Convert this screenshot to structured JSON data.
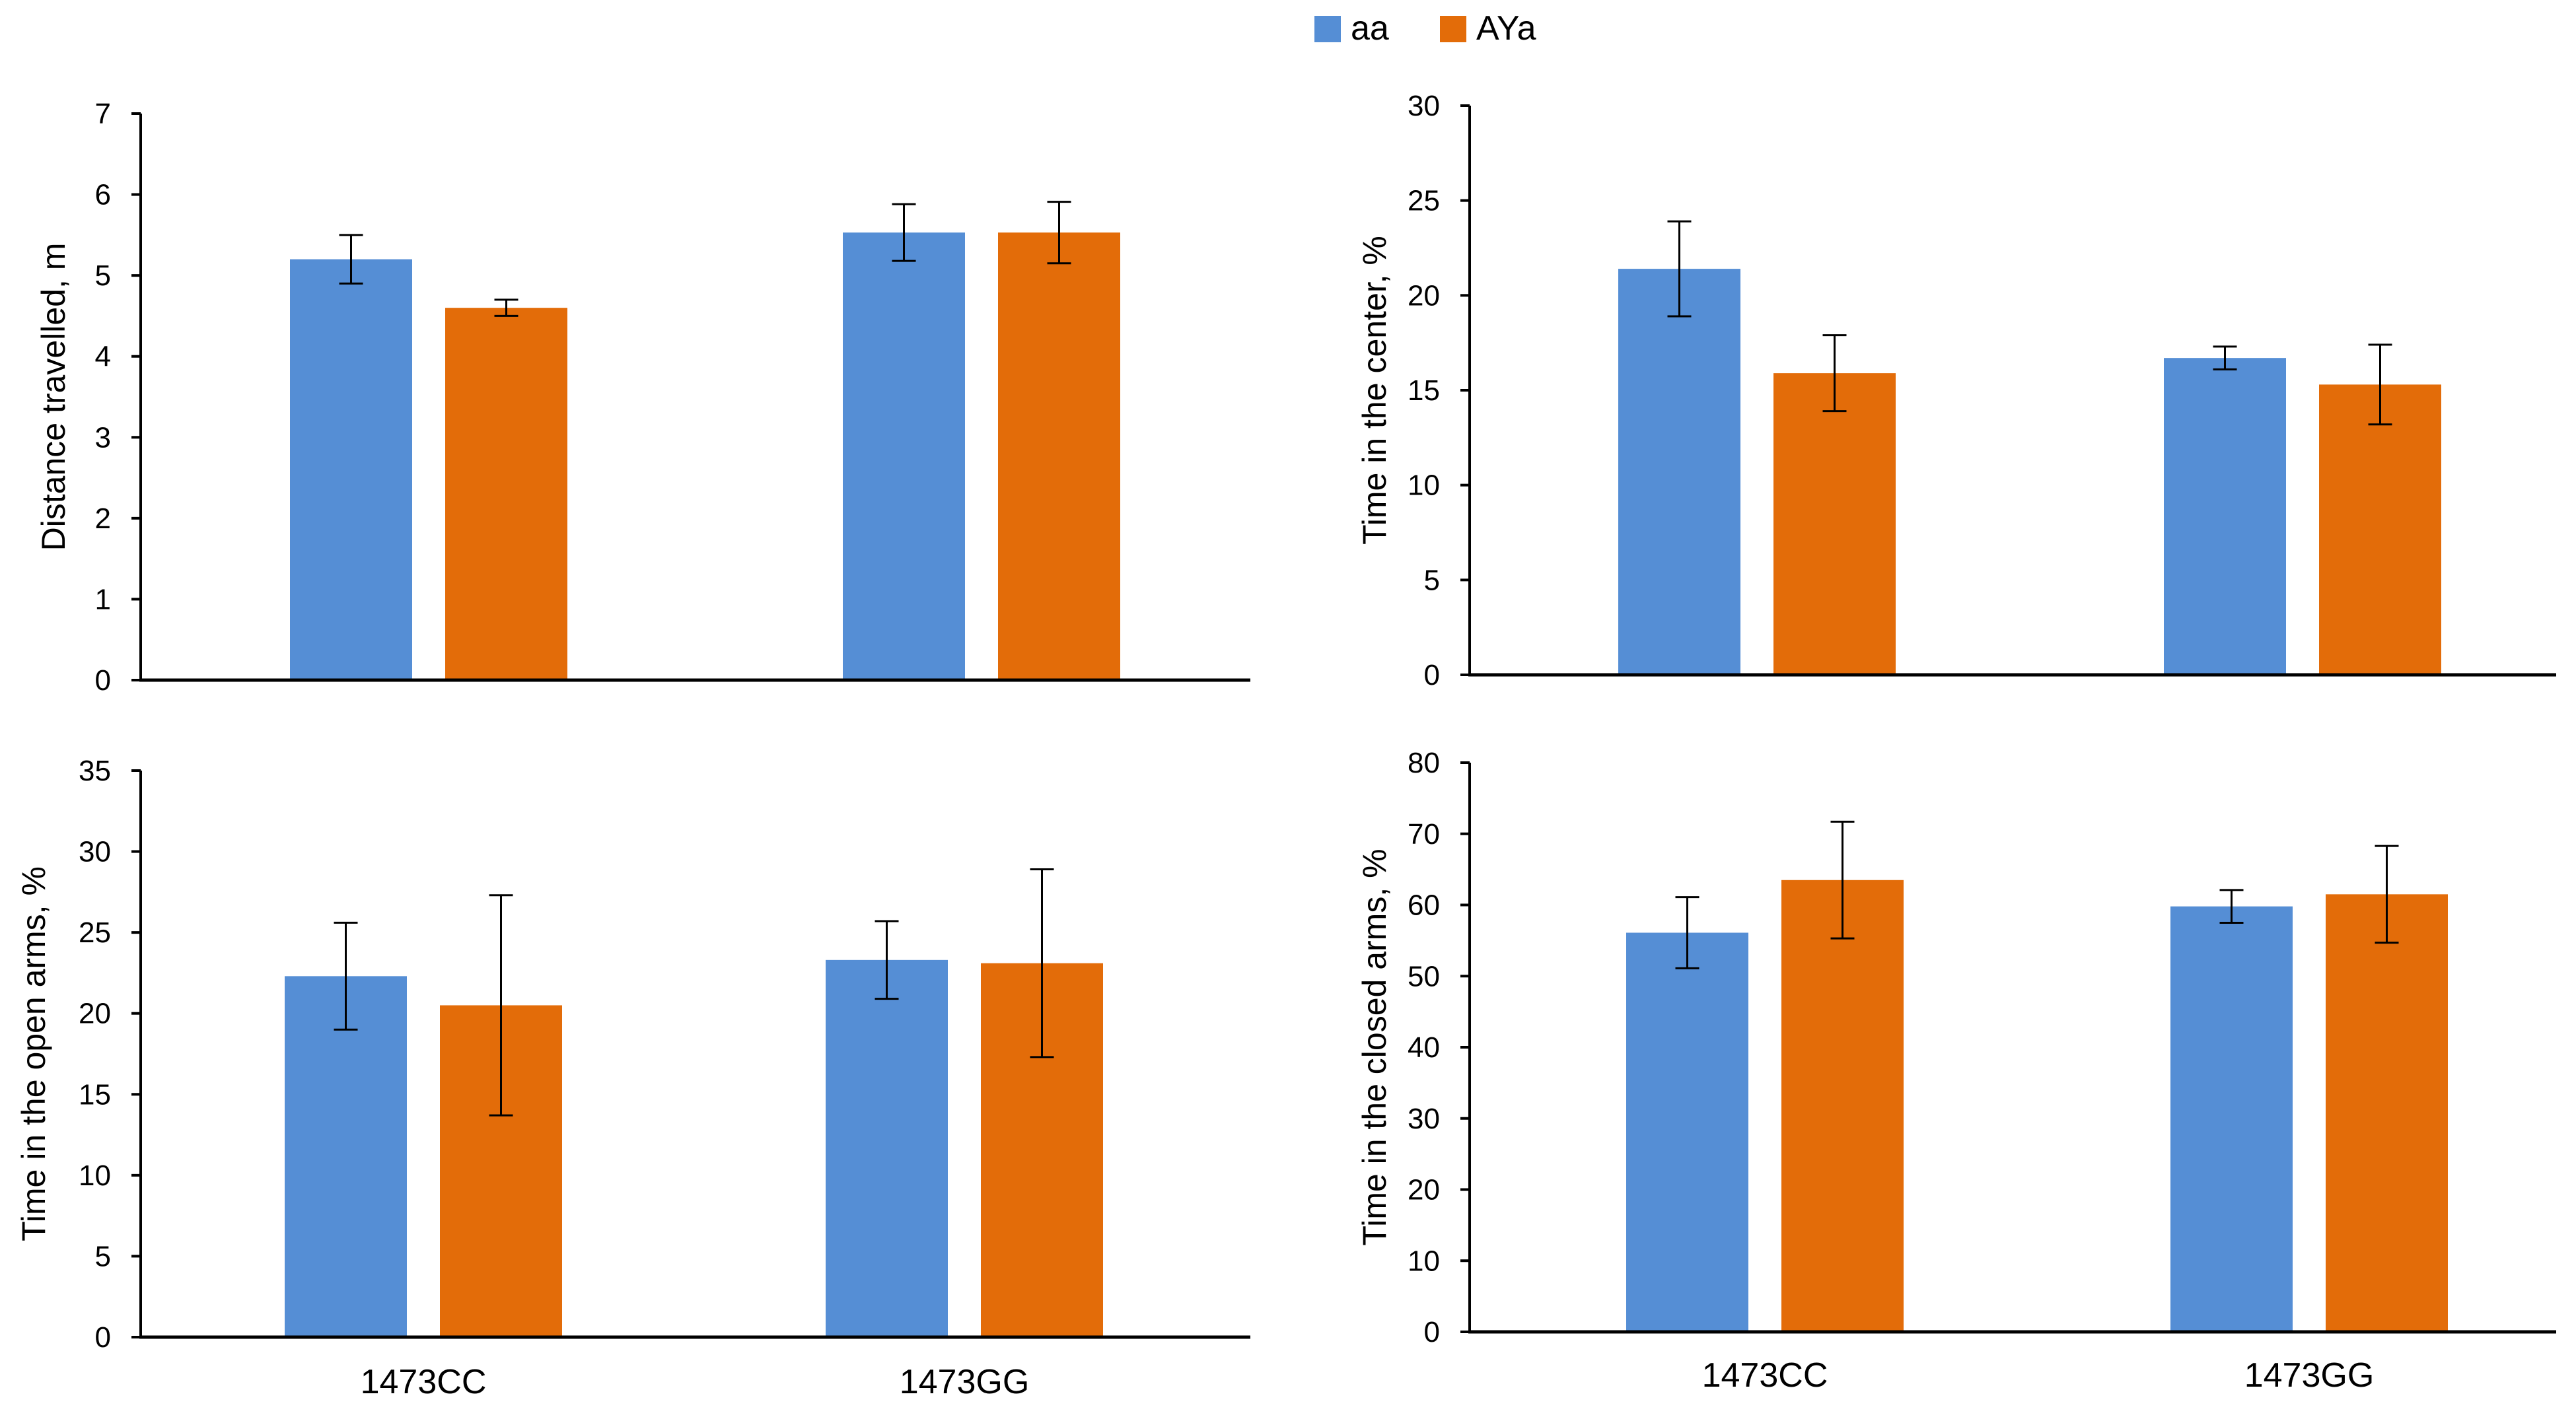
{
  "colors": {
    "aa": "#558ED5",
    "AYa": "#E36C09",
    "axis": "#000000"
  },
  "legend": [
    {
      "name": "aa",
      "color": "#558ED5"
    },
    {
      "name": "AYa",
      "color": "#E36C09"
    }
  ],
  "chart_data": [
    {
      "type": "bar",
      "title": "",
      "categories": [
        "1473CC",
        "1473GG"
      ],
      "show_category_labels": false,
      "xlabel": "",
      "ylabel": "Distance travelled, m",
      "ylim": [
        0,
        7
      ],
      "yticks": [
        0,
        1,
        2,
        3,
        4,
        5,
        6,
        7
      ],
      "grid": false,
      "series": [
        {
          "name": "aa",
          "values": [
            5.2,
            5.53
          ],
          "errors": [
            0.3,
            0.35
          ]
        },
        {
          "name": "AYa",
          "values": [
            4.6,
            5.53
          ],
          "errors": [
            0.1,
            0.38
          ]
        }
      ]
    },
    {
      "type": "bar",
      "title": "",
      "categories": [
        "1473CC",
        "1473GG"
      ],
      "show_category_labels": false,
      "xlabel": "",
      "ylabel": "Time in the center, %",
      "ylim": [
        0,
        30
      ],
      "yticks": [
        0,
        5,
        10,
        15,
        20,
        25,
        30
      ],
      "grid": false,
      "series": [
        {
          "name": "aa",
          "values": [
            21.4,
            16.7
          ],
          "errors": [
            2.5,
            0.6
          ]
        },
        {
          "name": "AYa",
          "values": [
            15.9,
            15.3
          ],
          "errors": [
            2.0,
            2.1
          ]
        }
      ]
    },
    {
      "type": "bar",
      "title": "",
      "categories": [
        "1473CC",
        "1473GG"
      ],
      "show_category_labels": true,
      "xlabel": "",
      "ylabel": "Time in the open arms, %",
      "ylim": [
        0,
        35
      ],
      "yticks": [
        0,
        5,
        10,
        15,
        20,
        25,
        30,
        35
      ],
      "grid": false,
      "series": [
        {
          "name": "aa",
          "values": [
            22.3,
            23.3
          ],
          "errors": [
            3.3,
            2.4
          ]
        },
        {
          "name": "AYa",
          "values": [
            20.5,
            23.1
          ],
          "errors": [
            6.8,
            5.8
          ]
        }
      ]
    },
    {
      "type": "bar",
      "title": "",
      "categories": [
        "1473CC",
        "1473GG"
      ],
      "show_category_labels": true,
      "xlabel": "",
      "ylabel": "Time in the closed arms, %",
      "ylim": [
        0,
        80
      ],
      "yticks": [
        0,
        10,
        20,
        30,
        40,
        50,
        60,
        70,
        80
      ],
      "grid": false,
      "series": [
        {
          "name": "aa",
          "values": [
            56.1,
            59.8
          ],
          "errors": [
            5.0,
            2.3
          ]
        },
        {
          "name": "AYa",
          "values": [
            63.5,
            61.5
          ],
          "errors": [
            8.2,
            6.8
          ]
        }
      ]
    }
  ]
}
